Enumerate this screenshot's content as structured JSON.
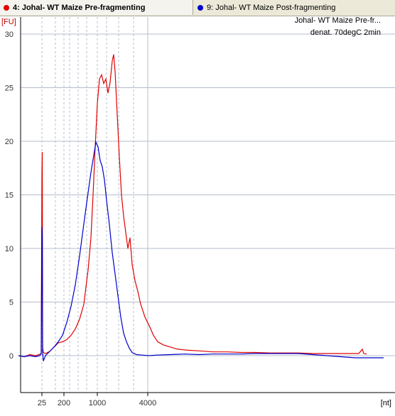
{
  "tabs": [
    {
      "label": "4: Johal- WT Maize Pre-fragmenting",
      "color": "#e00000",
      "active": true
    },
    {
      "label": "9: Johal- WT Maize Post-fragmenting",
      "color": "#0000cc",
      "active": false
    }
  ],
  "chart_data": {
    "type": "line",
    "ylabel": "[FU]",
    "xlabel": "[nt]",
    "annotations": [
      "Johal- WT Maize Pre-fr...",
      "denat. 70degC 2min"
    ],
    "y_ticks": [
      0,
      5,
      10,
      15,
      20,
      25,
      30
    ],
    "x_ticks": [
      "25",
      "200",
      "1000",
      "4000"
    ],
    "ylim": [
      -3.3,
      32
    ],
    "grid": true,
    "series": [
      {
        "name": "4: Johal- WT Maize Pre-fragmenting",
        "color": "#e00000",
        "points": [
          [
            26,
            0
          ],
          [
            34,
            -0.1
          ],
          [
            42,
            0.1
          ],
          [
            50,
            0
          ],
          [
            55,
            0.1
          ],
          [
            58,
            0.2
          ],
          [
            59,
            17
          ],
          [
            59.5,
            19
          ],
          [
            60,
            0.8
          ],
          [
            61,
            0.3
          ],
          [
            64,
            0.2
          ],
          [
            70,
            0.4
          ],
          [
            76,
            0.8
          ],
          [
            82,
            1.2
          ],
          [
            88,
            1.3
          ],
          [
            94,
            1.5
          ],
          [
            100,
            1.9
          ],
          [
            106,
            2.5
          ],
          [
            112,
            3.4
          ],
          [
            118,
            4.8
          ],
          [
            124,
            8
          ],
          [
            128,
            11
          ],
          [
            131,
            15
          ],
          [
            134,
            19.5
          ],
          [
            137,
            23.5
          ],
          [
            140,
            25.8
          ],
          [
            143,
            26.2
          ],
          [
            146,
            25.4
          ],
          [
            149,
            25.8
          ],
          [
            152,
            24.5
          ],
          [
            155,
            25.5
          ],
          [
            158,
            27.5
          ],
          [
            160,
            28.1
          ],
          [
            162,
            26.5
          ],
          [
            165,
            22.5
          ],
          [
            168,
            18.5
          ],
          [
            171,
            15
          ],
          [
            174,
            13
          ],
          [
            177,
            11.5
          ],
          [
            180,
            10
          ],
          [
            183,
            11
          ],
          [
            186,
            8.5
          ],
          [
            190,
            7
          ],
          [
            194,
            6
          ],
          [
            198,
            4.8
          ],
          [
            204,
            3.6
          ],
          [
            210,
            2.8
          ],
          [
            216,
            1.9
          ],
          [
            222,
            1.3
          ],
          [
            230,
            1
          ],
          [
            240,
            0.8
          ],
          [
            250,
            0.6
          ],
          [
            265,
            0.5
          ],
          [
            280,
            0.45
          ],
          [
            300,
            0.35
          ],
          [
            320,
            0.35
          ],
          [
            340,
            0.3
          ],
          [
            360,
            0.3
          ],
          [
            380,
            0.25
          ],
          [
            400,
            0.25
          ],
          [
            420,
            0.25
          ],
          [
            440,
            0.2
          ],
          [
            460,
            0.2
          ],
          [
            480,
            0.2
          ],
          [
            500,
            0.2
          ],
          [
            505,
            0.2
          ],
          [
            510,
            0.6
          ],
          [
            512,
            0.2
          ],
          [
            516,
            0.15
          ]
        ]
      },
      {
        "name": "9: Johal- WT Maize Post-fragmenting",
        "color": "#0000cc",
        "points": [
          [
            26,
            0
          ],
          [
            34,
            -0.1
          ],
          [
            42,
            0
          ],
          [
            50,
            -0.1
          ],
          [
            56,
            0
          ],
          [
            58,
            0.2
          ],
          [
            59,
            12
          ],
          [
            59.5,
            11
          ],
          [
            60,
            0.3
          ],
          [
            61,
            -0.5
          ],
          [
            64,
            0
          ],
          [
            70,
            0.4
          ],
          [
            76,
            0.8
          ],
          [
            82,
            1.3
          ],
          [
            88,
            1.9
          ],
          [
            94,
            3.1
          ],
          [
            100,
            4.6
          ],
          [
            106,
            6.6
          ],
          [
            112,
            9.3
          ],
          [
            118,
            12.3
          ],
          [
            124,
            15.2
          ],
          [
            128,
            17.1
          ],
          [
            132,
            18.7
          ],
          [
            135,
            19.9
          ],
          [
            138,
            19.5
          ],
          [
            141,
            18.2
          ],
          [
            144,
            17.6
          ],
          [
            147,
            16.4
          ],
          [
            150,
            14.5
          ],
          [
            154,
            12.2
          ],
          [
            158,
            9.6
          ],
          [
            162,
            7.6
          ],
          [
            166,
            5.6
          ],
          [
            170,
            3.6
          ],
          [
            174,
            2.1
          ],
          [
            178,
            1.3
          ],
          [
            182,
            0.7
          ],
          [
            186,
            0.3
          ],
          [
            192,
            0.1
          ],
          [
            200,
            0.05
          ],
          [
            210,
            0
          ],
          [
            220,
            0.05
          ],
          [
            240,
            0.1
          ],
          [
            260,
            0.15
          ],
          [
            280,
            0.1
          ],
          [
            300,
            0.15
          ],
          [
            320,
            0.15
          ],
          [
            340,
            0.15
          ],
          [
            360,
            0.2
          ],
          [
            380,
            0.2
          ],
          [
            400,
            0.2
          ],
          [
            420,
            0.2
          ],
          [
            440,
            0.1
          ],
          [
            460,
            0
          ],
          [
            480,
            -0.1
          ],
          [
            500,
            -0.2
          ],
          [
            520,
            -0.2
          ],
          [
            540,
            -0.2
          ]
        ]
      }
    ]
  }
}
